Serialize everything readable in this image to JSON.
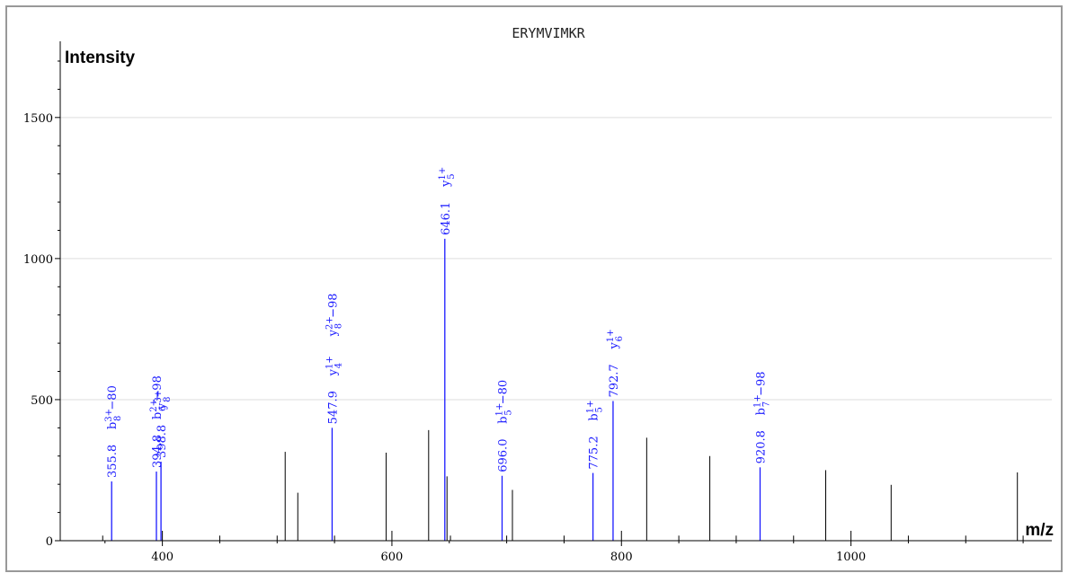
{
  "chart_data": {
    "type": "bar",
    "title": "ERYMVIMKR",
    "xlabel": "m/z",
    "ylabel": "Intensity",
    "xlim": [
      311,
      1175
    ],
    "ylim": [
      0,
      1770
    ],
    "x_ticks": [
      "400",
      "600",
      "800",
      "1000"
    ],
    "y_ticks": [
      "0",
      "500",
      "1000",
      "1500"
    ],
    "grid": "horizontal",
    "colors": {
      "annotated": "#1a1aff",
      "unannotated": "#000000",
      "grid": "#dddddd",
      "frame": "#999999"
    },
    "annotated_peaks": [
      {
        "mz": 355.8,
        "intensity": 210,
        "label": "355.8",
        "ion": "b",
        "subscript": "8",
        "charge": "3+",
        "loss": "−80"
      },
      {
        "mz": 394.8,
        "intensity": 245,
        "label": "394.8",
        "ion": "b",
        "subscript": "6",
        "charge": "2+",
        "loss": "−98"
      },
      {
        "mz": 398.8,
        "intensity": 280,
        "label": "398.8",
        "ion": "y",
        "subscript": "8",
        "charge": "3+",
        "loss": ""
      },
      {
        "mz": 547.9,
        "intensity": 400,
        "label": "547.9",
        "ion": "y",
        "subscript": "4",
        "charge": "1+",
        "loss": "",
        "ion2": {
          "ion": "y",
          "subscript": "8",
          "charge": "2+",
          "loss": "−98"
        }
      },
      {
        "mz": 646.1,
        "intensity": 1070,
        "label": "646.1",
        "ion": "y",
        "subscript": "5",
        "charge": "1+",
        "loss": ""
      },
      {
        "mz": 696.0,
        "intensity": 230,
        "label": "696.0",
        "ion": "b",
        "subscript": "5",
        "charge": "1+",
        "loss": "−80"
      },
      {
        "mz": 775.2,
        "intensity": 240,
        "label": "775.2",
        "ion": "b",
        "subscript": "5",
        "charge": "1+",
        "loss": ""
      },
      {
        "mz": 792.7,
        "intensity": 495,
        "label": "792.7",
        "ion": "y",
        "subscript": "6",
        "charge": "1+",
        "loss": ""
      },
      {
        "mz": 920.8,
        "intensity": 260,
        "label": "920.8",
        "ion": "b",
        "subscript": "7",
        "charge": "1+",
        "loss": "−98"
      }
    ],
    "unannotated_peaks": [
      {
        "mz": 348,
        "intensity": 18
      },
      {
        "mz": 400,
        "intensity": 35
      },
      {
        "mz": 450,
        "intensity": 18
      },
      {
        "mz": 500,
        "intensity": 18
      },
      {
        "mz": 507,
        "intensity": 315
      },
      {
        "mz": 518,
        "intensity": 170
      },
      {
        "mz": 550,
        "intensity": 18
      },
      {
        "mz": 595,
        "intensity": 312
      },
      {
        "mz": 600,
        "intensity": 35
      },
      {
        "mz": 632,
        "intensity": 392
      },
      {
        "mz": 648,
        "intensity": 228
      },
      {
        "mz": 651,
        "intensity": 18
      },
      {
        "mz": 700,
        "intensity": 18
      },
      {
        "mz": 705,
        "intensity": 180
      },
      {
        "mz": 750,
        "intensity": 18
      },
      {
        "mz": 800,
        "intensity": 35
      },
      {
        "mz": 822,
        "intensity": 365
      },
      {
        "mz": 850,
        "intensity": 18
      },
      {
        "mz": 877,
        "intensity": 300
      },
      {
        "mz": 900,
        "intensity": 18
      },
      {
        "mz": 950,
        "intensity": 18
      },
      {
        "mz": 978,
        "intensity": 250
      },
      {
        "mz": 1000,
        "intensity": 35
      },
      {
        "mz": 1035,
        "intensity": 198
      },
      {
        "mz": 1050,
        "intensity": 18
      },
      {
        "mz": 1100,
        "intensity": 18
      },
      {
        "mz": 1145,
        "intensity": 242
      },
      {
        "mz": 1150,
        "intensity": 18
      }
    ]
  }
}
